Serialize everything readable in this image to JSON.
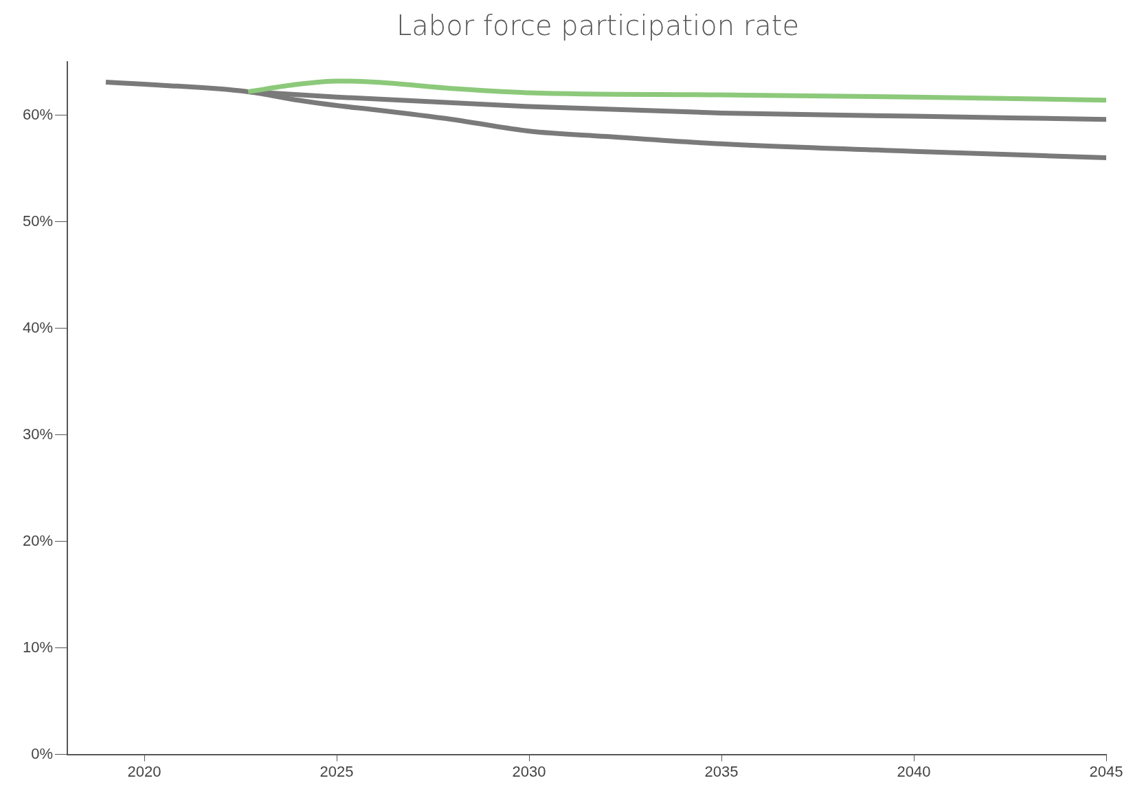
{
  "chart_data": {
    "type": "line",
    "title": "Labor force participation rate",
    "xlim": [
      2018,
      2045
    ],
    "xticks": [
      2020,
      2025,
      2030,
      2035,
      2040,
      2045
    ],
    "ylim": [
      0,
      65
    ],
    "yticks": [
      {
        "value": 0,
        "label": "0%"
      },
      {
        "value": 10,
        "label": "10%"
      },
      {
        "value": 20,
        "label": "20%"
      },
      {
        "value": 30,
        "label": "30%"
      },
      {
        "value": 40,
        "label": "40%"
      },
      {
        "value": 50,
        "label": "50%"
      },
      {
        "value": 60,
        "label": "60%"
      }
    ],
    "grid": false,
    "legend": false,
    "marker": "none",
    "line_style": "solid",
    "series": [
      {
        "color": "#8cc97a",
        "x": [
          2022.7,
          2024,
          2025,
          2026,
          2028,
          2030,
          2035,
          2040,
          2045
        ],
        "values": [
          62.2,
          62.9,
          63.2,
          63.1,
          62.5,
          62.1,
          61.9,
          61.7,
          61.4
        ]
      },
      {
        "color": "#7a7a7a",
        "x": [
          2022.7,
          2025,
          2030,
          2035,
          2040,
          2045
        ],
        "values": [
          62.2,
          61.7,
          60.8,
          60.2,
          59.9,
          59.6
        ]
      },
      {
        "color": "#7a7a7a",
        "x": [
          2019,
          2020,
          2022.7,
          2024,
          2025,
          2026,
          2028,
          2030,
          2032,
          2035,
          2040,
          2045
        ],
        "values": [
          63.1,
          62.9,
          62.2,
          61.4,
          60.9,
          60.5,
          59.6,
          58.5,
          58.0,
          57.3,
          56.6,
          56.0
        ]
      }
    ]
  }
}
